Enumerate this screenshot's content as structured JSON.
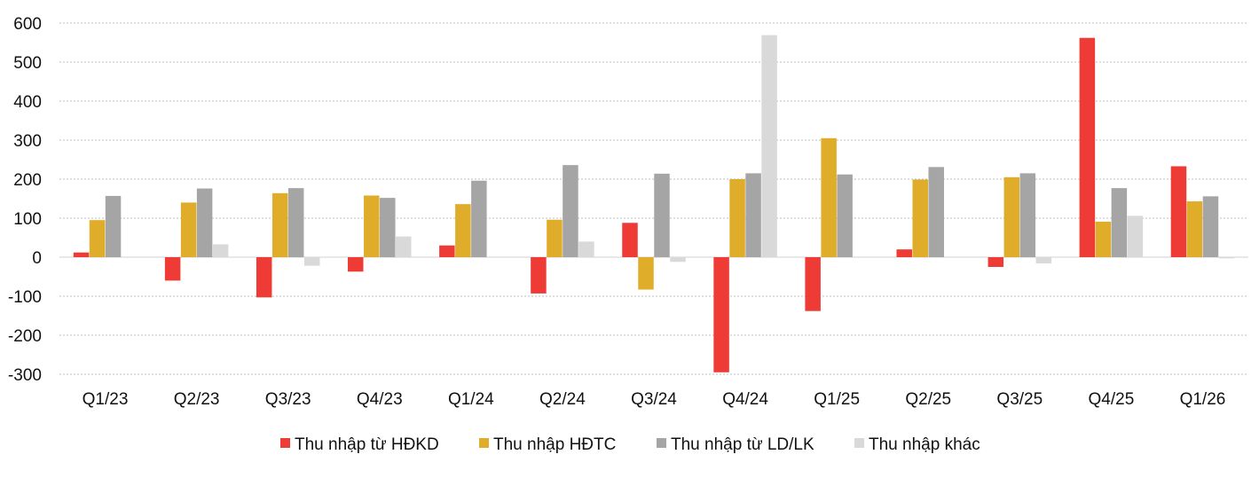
{
  "chart_data": {
    "type": "bar",
    "title": "",
    "xlabel": "",
    "ylabel": "",
    "ylim": [
      -300,
      600
    ],
    "yticks": [
      600,
      500,
      400,
      300,
      200,
      100,
      0,
      -100,
      -200,
      -300
    ],
    "ytick_labels": [
      "600",
      "500",
      "400",
      "300",
      "200",
      "100",
      "0",
      "-100",
      "-200",
      "-300"
    ],
    "grid": true,
    "legend_position": "bottom",
    "categories": [
      "Q1/23",
      "Q2/23",
      "Q3/23",
      "Q4/23",
      "Q1/24",
      "Q2/24",
      "Q3/24",
      "Q4/24",
      "Q1/25",
      "Q2/25",
      "Q3/25",
      "Q4/25",
      "Q1/26"
    ],
    "series": [
      {
        "name": "Thu nhập từ HĐKD",
        "color": "#ef3b36",
        "values": [
          12,
          -60,
          -103,
          -37,
          30,
          -93,
          88,
          -295,
          -138,
          20,
          -25,
          562,
          233
        ]
      },
      {
        "name": "Thu nhập HĐTC",
        "color": "#e0ad2a",
        "values": [
          95,
          140,
          164,
          158,
          136,
          96,
          -83,
          200,
          305,
          199,
          205,
          91,
          143
        ]
      },
      {
        "name": "Thu nhập từ LD/LK",
        "color": "#a5a5a5",
        "values": [
          157,
          176,
          177,
          152,
          196,
          236,
          214,
          215,
          212,
          231,
          215,
          177,
          156
        ]
      },
      {
        "name": "Thu nhập khác",
        "color": "#d9d9d9",
        "values": [
          0,
          33,
          -22,
          53,
          0,
          40,
          -12,
          569,
          0,
          0,
          -16,
          106,
          -3
        ]
      }
    ]
  }
}
